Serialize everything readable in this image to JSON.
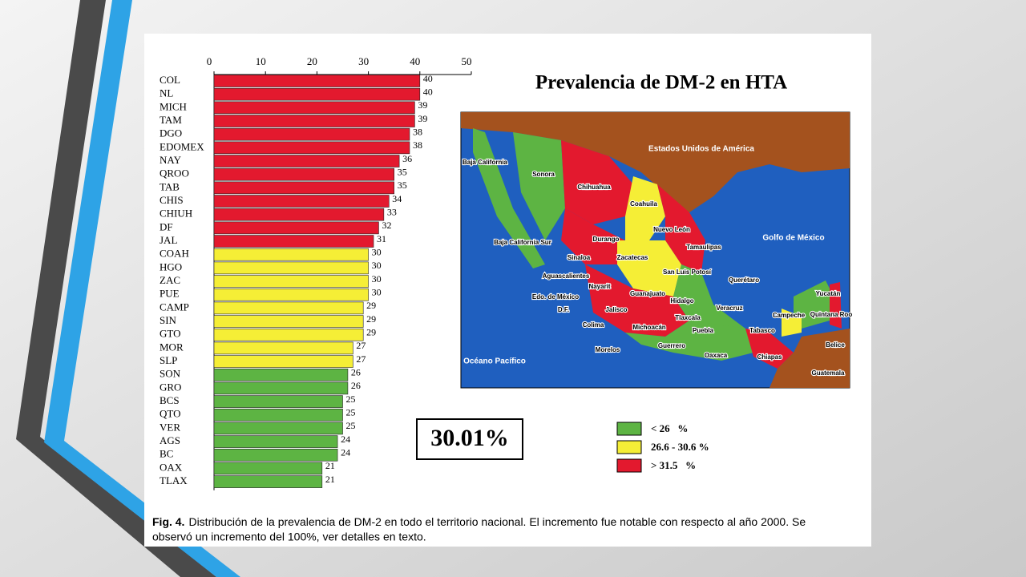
{
  "chart_data": {
    "type": "bar",
    "orientation": "horizontal",
    "categories": [
      "COL",
      "NL",
      "MICH",
      "TAM",
      "DGO",
      "EDOMEX",
      "NAY",
      "QROO",
      "TAB",
      "CHIS",
      "CHIUH",
      "DF",
      "JAL",
      "COAH",
      "HGO",
      "ZAC",
      "PUE",
      "CAMP",
      "SIN",
      "GTO",
      "MOR",
      "SLP",
      "SON",
      "GRO",
      "BCS",
      "QTO",
      "VER",
      "AGS",
      "BC",
      "OAX",
      "TLAX"
    ],
    "values": [
      40,
      40,
      39,
      39,
      38,
      38,
      36,
      35,
      35,
      34,
      33,
      32,
      31,
      30,
      30,
      30,
      30,
      29,
      29,
      29,
      27,
      27,
      26,
      26,
      25,
      25,
      25,
      24,
      24,
      21,
      21
    ],
    "colors": [
      "#e3192e",
      "#e3192e",
      "#e3192e",
      "#e3192e",
      "#e3192e",
      "#e3192e",
      "#e3192e",
      "#e3192e",
      "#e3192e",
      "#e3192e",
      "#e3192e",
      "#e3192e",
      "#e3192e",
      "#f5ee36",
      "#f5ee36",
      "#f5ee36",
      "#f5ee36",
      "#f5ee36",
      "#f5ee36",
      "#f5ee36",
      "#f5ee36",
      "#f5ee36",
      "#5db443",
      "#5db443",
      "#5db443",
      "#5db443",
      "#5db443",
      "#5db443",
      "#5db443",
      "#5db443",
      "#5db443"
    ],
    "xlim": [
      0,
      50
    ],
    "xticks": [
      0,
      10,
      20,
      30,
      40,
      50
    ]
  },
  "map": {
    "title": "Prevalencia de DM-2 en HTA",
    "labels": [
      "Estados Unidos de América",
      "Baja California",
      "Sonora",
      "Chihuahua",
      "Coahuila",
      "Nuevo León",
      "Golfo de México",
      "Baja California Sur",
      "Durango",
      "Tamaulipas",
      "Sinaloa",
      "Zacatecas",
      "San Luis Potosí",
      "Aguascalientes",
      "Querétaro",
      "Nayarit",
      "Guanajuato",
      "Edo. de México",
      "Yucatán",
      "Hidalgo",
      "Veracruz",
      "D.F.",
      "Jalisco",
      "Tlaxcala",
      "Campeche",
      "Quintana Roo",
      "Colima",
      "Michoacán",
      "Puebla",
      "Tabasco",
      "Guerrero",
      "Belice",
      "Morelos",
      "Oaxaca",
      "Océano Pacífico",
      "Chiapas",
      "Guatemala"
    ]
  },
  "legend": [
    {
      "label": "< 26   %",
      "color": "#5db443"
    },
    {
      "label": "26.6 - 30.6 %",
      "color": "#f5ee36"
    },
    {
      "label": "> 31.5   %",
      "color": "#e3192e"
    }
  ],
  "highlight": "30.01%",
  "caption": {
    "label": "Fig. 4.",
    "text": "Distribución de la prevalencia de DM-2 en todo el territorio nacional. El incremento fue notable con respecto al año 2000. Se",
    "text2": "observó un incremento del 100%, ver detalles en texto."
  }
}
